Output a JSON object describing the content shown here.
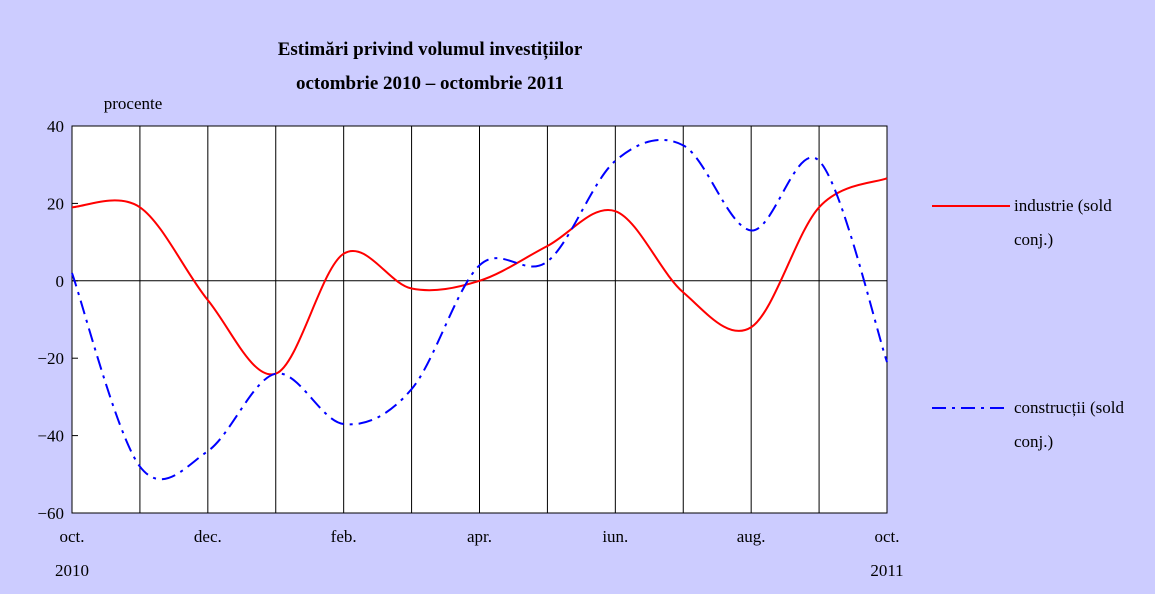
{
  "chart_data": {
    "type": "line",
    "title": "Estimări privind volumul investițiilor",
    "subtitle": "octombrie 2010 – octombrie 2011",
    "y_axis_label": "procente",
    "categories": [
      "oct. 2010",
      null,
      "dec.",
      null,
      "feb.",
      null,
      "apr.",
      null,
      "iun.",
      null,
      "aug.",
      null,
      "oct. 2011"
    ],
    "series": [
      {
        "name": "industrie (sold conj.)",
        "color": "#ff0000",
        "dash": "solid",
        "values": [
          19,
          19,
          -5,
          -24,
          7,
          -2,
          0,
          9,
          18,
          -3,
          -12,
          19,
          26.5
        ]
      },
      {
        "name": "construcții (sold conj.)",
        "color": "#0000ff",
        "dash": "dashdot",
        "values": [
          2,
          -48,
          -44,
          -24,
          -37,
          -28,
          4,
          5,
          31,
          35,
          13,
          31,
          -21
        ]
      }
    ],
    "ylim": [
      -60,
      40
    ],
    "yticks": [
      {
        "value": -60,
        "label": "−60"
      },
      {
        "value": -40,
        "label": "−40"
      },
      {
        "value": -20,
        "label": "−20"
      },
      0,
      20,
      40
    ],
    "grid": "vertical",
    "legend": "right"
  }
}
